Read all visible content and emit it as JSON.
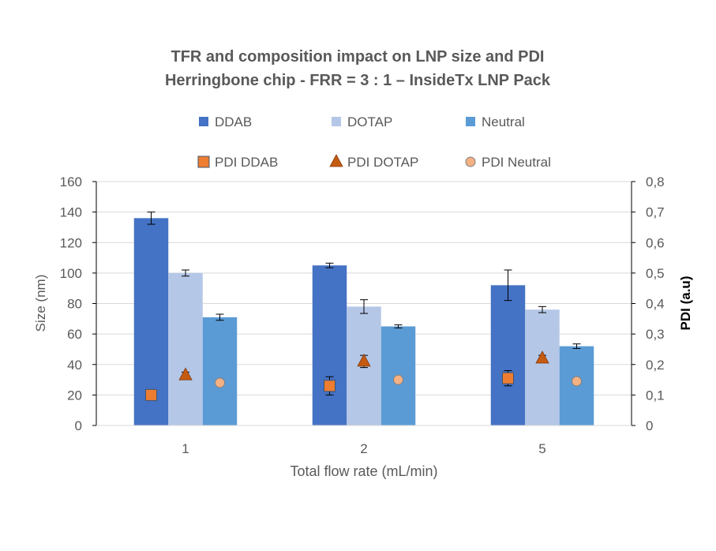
{
  "chart_data": {
    "type": "bar",
    "title": [
      "TFR and composition impact on LNP size and PDI",
      "Herringbone chip - FRR = 3 : 1 – InsideTx LNP Pack"
    ],
    "xlabel": "Total flow rate (mL/min)",
    "ylabel": "Size (nm)",
    "y2label": "PDI (a.u)",
    "categories": [
      "1",
      "2",
      "5"
    ],
    "ylim": [
      0,
      160
    ],
    "yticks": [
      "0",
      "20",
      "40",
      "60",
      "80",
      "100",
      "120",
      "140",
      "160"
    ],
    "y2lim": [
      0,
      0.8
    ],
    "y2ticks": [
      "0",
      "0,1",
      "0,2",
      "0,3",
      "0,4",
      "0,5",
      "0,6",
      "0,7",
      "0,8"
    ],
    "grid": true,
    "legend_position": "top",
    "bar_series": [
      {
        "name": "DDAB",
        "color": "#4472C4",
        "values": [
          136,
          105,
          92
        ],
        "errors": [
          4,
          1.5,
          10
        ]
      },
      {
        "name": "DOTAP",
        "color": "#B4C7E7",
        "values": [
          100,
          78,
          76
        ],
        "errors": [
          2,
          4.5,
          2
        ]
      },
      {
        "name": "Neutral",
        "color": "#5B9BD5",
        "values": [
          71,
          65,
          52
        ],
        "errors": [
          2,
          1,
          1.5
        ]
      }
    ],
    "marker_series": [
      {
        "name": "PDI DDAB",
        "marker": "square",
        "color": "#ED7D31",
        "values": [
          0.1,
          0.13,
          0.155
        ],
        "errors": [
          0,
          0.03,
          0.025
        ]
      },
      {
        "name": "PDI DOTAP",
        "marker": "triangle",
        "color": "#C55A11",
        "values": [
          0.165,
          0.21,
          0.22
        ],
        "errors": [
          0.01,
          0.02,
          0.01
        ]
      },
      {
        "name": "PDI Neutral",
        "marker": "circle",
        "color": "#F4B183",
        "values": [
          0.14,
          0.15,
          0.145
        ],
        "errors": [
          0,
          0,
          0
        ]
      }
    ]
  }
}
